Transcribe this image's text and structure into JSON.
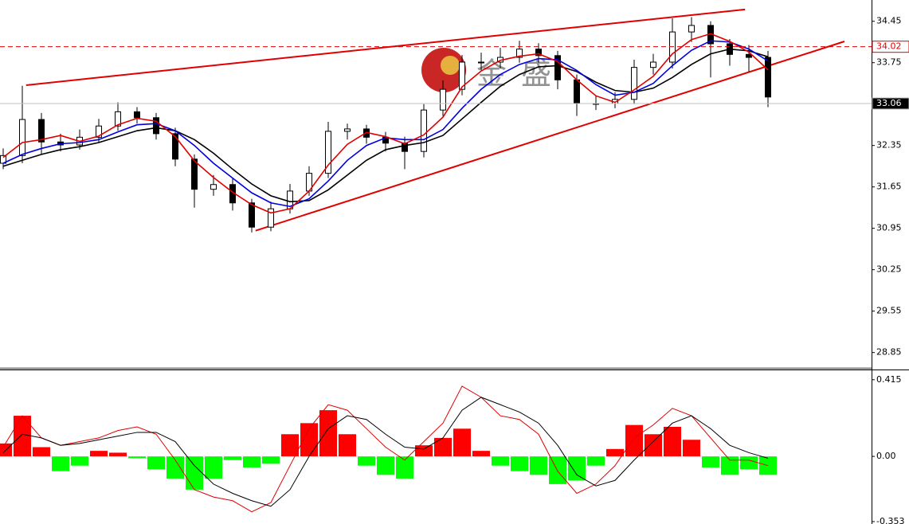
{
  "chart_data": [
    {
      "type": "candlestick",
      "watermark": "金盛",
      "open": [
        32.05,
        32.18,
        32.79,
        32.41,
        32.36,
        32.49,
        32.68,
        32.92,
        32.82,
        32.55,
        32.12,
        31.61,
        31.69,
        31.38,
        30.97,
        31.28,
        31.58,
        31.88,
        32.59,
        32.63,
        32.49,
        32.39,
        32.25,
        32.95,
        33.3,
        33.76,
        33.76,
        33.84,
        33.98,
        33.87,
        33.46,
        33.06,
        33.06,
        33.13,
        33.67,
        33.76,
        34.27,
        34.38,
        34.07,
        33.89,
        33.84
      ],
      "high": [
        32.3,
        33.36,
        32.9,
        32.55,
        32.62,
        32.8,
        33.08,
        33.0,
        32.9,
        32.65,
        32.2,
        31.85,
        31.8,
        31.45,
        31.4,
        31.7,
        32.0,
        32.75,
        32.72,
        32.7,
        32.58,
        32.5,
        33.05,
        33.45,
        33.88,
        33.92,
        34.0,
        34.12,
        34.08,
        33.95,
        33.55,
        33.2,
        33.25,
        33.8,
        33.9,
        34.5,
        34.52,
        34.45,
        34.15,
        34.05,
        33.95
      ],
      "low": [
        31.95,
        32.05,
        32.2,
        32.25,
        32.28,
        32.4,
        32.6,
        32.72,
        32.45,
        32.0,
        31.3,
        31.5,
        31.25,
        30.88,
        30.9,
        31.2,
        31.5,
        31.8,
        32.45,
        32.38,
        32.25,
        31.95,
        32.15,
        32.85,
        33.2,
        33.62,
        33.65,
        33.75,
        33.75,
        33.3,
        32.85,
        32.95,
        32.98,
        33.05,
        33.55,
        33.65,
        34.1,
        33.5,
        33.7,
        33.6,
        33.0
      ],
      "close": [
        32.18,
        32.79,
        32.41,
        32.36,
        32.49,
        32.68,
        32.92,
        32.82,
        32.55,
        32.12,
        31.61,
        31.69,
        31.38,
        30.97,
        31.28,
        31.58,
        31.88,
        32.59,
        32.63,
        32.49,
        32.39,
        32.25,
        32.95,
        33.3,
        33.76,
        33.76,
        33.84,
        33.98,
        33.87,
        33.46,
        33.06,
        33.06,
        33.13,
        33.67,
        33.76,
        34.27,
        34.38,
        34.07,
        33.89,
        33.84,
        33.17
      ],
      "up_color": "#ffffff",
      "down_color": "#000000",
      "ma_lines": [
        {
          "color": "#000000",
          "values": [
            32.0,
            32.1,
            32.2,
            32.28,
            32.33,
            32.4,
            32.5,
            32.6,
            32.65,
            32.6,
            32.45,
            32.22,
            31.95,
            31.7,
            31.5,
            31.4,
            31.42,
            31.6,
            31.85,
            32.1,
            32.28,
            32.35,
            32.4,
            32.52,
            32.8,
            33.08,
            33.35,
            33.55,
            33.68,
            33.7,
            33.6,
            33.42,
            33.28,
            33.25,
            33.32,
            33.5,
            33.72,
            33.9,
            33.98,
            33.95,
            33.85
          ]
        },
        {
          "color": "#0000e0",
          "values": [
            32.05,
            32.2,
            32.3,
            32.38,
            32.4,
            32.45,
            32.58,
            32.7,
            32.72,
            32.6,
            32.35,
            32.05,
            31.8,
            31.55,
            31.38,
            31.32,
            31.45,
            31.75,
            32.1,
            32.35,
            32.48,
            32.45,
            32.45,
            32.62,
            32.98,
            33.3,
            33.55,
            33.72,
            33.82,
            33.8,
            33.62,
            33.38,
            33.2,
            33.25,
            33.4,
            33.7,
            33.96,
            34.12,
            34.1,
            33.98,
            33.78
          ]
        },
        {
          "color": "#e00000",
          "values": [
            32.15,
            32.4,
            32.45,
            32.52,
            32.42,
            32.51,
            32.7,
            32.81,
            32.76,
            32.5,
            32.09,
            31.81,
            31.56,
            31.35,
            31.21,
            31.28,
            31.58,
            32.02,
            32.37,
            32.57,
            32.5,
            32.38,
            32.53,
            32.83,
            33.34,
            33.61,
            33.79,
            33.86,
            33.9,
            33.77,
            33.46,
            33.19,
            33.08,
            33.29,
            33.52,
            33.9,
            34.14,
            34.24,
            34.11,
            33.93,
            33.63
          ]
        }
      ],
      "trendlines": [
        {
          "color": "#e00000",
          "x": [
            1.2,
            38.8
          ],
          "y": [
            33.37,
            34.65
          ]
        },
        {
          "color": "#e00000",
          "x": [
            13.2,
            44
          ],
          "y": [
            30.91,
            34.11
          ]
        }
      ],
      "hlines": [
        {
          "value": 34.02,
          "color": "#e00000",
          "dashed": true,
          "label_bg": "#ffffff",
          "label_color": "#e00000"
        },
        {
          "value": 33.06,
          "color": "#c0c0c0",
          "dashed": false,
          "label_bg": "#000000",
          "label_color": "#ffffff"
        }
      ],
      "ylim": [
        28.59,
        34.81
      ],
      "yticks": [
        34.45,
        33.75,
        33.05,
        32.35,
        31.65,
        30.95,
        30.25,
        29.55,
        28.85
      ]
    },
    {
      "type": "macd",
      "values": [
        0.07,
        0.22,
        0.05,
        -0.08,
        -0.05,
        0.03,
        0.02,
        -0.01,
        -0.07,
        -0.12,
        -0.18,
        -0.12,
        -0.02,
        -0.06,
        -0.04,
        0.12,
        0.18,
        0.25,
        0.12,
        -0.05,
        -0.1,
        -0.12,
        0.06,
        0.1,
        0.15,
        0.03,
        -0.05,
        -0.08,
        -0.1,
        -0.15,
        -0.13,
        -0.05,
        0.04,
        0.17,
        0.12,
        0.16,
        0.09,
        -0.06,
        -0.1,
        -0.07,
        -0.1
      ],
      "up_color": "#ff0000",
      "down_color": "#00ff00",
      "lines": [
        {
          "color": "#e00000",
          "values": [
            0.05,
            0.22,
            0.1,
            0.06,
            0.08,
            0.1,
            0.14,
            0.16,
            0.12,
            -0.02,
            -0.18,
            -0.22,
            -0.24,
            -0.3,
            -0.25,
            -0.05,
            0.15,
            0.28,
            0.25,
            0.15,
            0.05,
            -0.02,
            0.08,
            0.18,
            0.38,
            0.32,
            0.22,
            0.2,
            0.12,
            -0.08,
            -0.2,
            -0.15,
            -0.05,
            0.1,
            0.17,
            0.26,
            0.22,
            0.1,
            -0.02,
            -0.02,
            -0.05
          ]
        },
        {
          "color": "#000000",
          "values": [
            0.02,
            0.12,
            0.1,
            0.06,
            0.07,
            0.09,
            0.11,
            0.13,
            0.13,
            0.08,
            -0.05,
            -0.15,
            -0.2,
            -0.24,
            -0.27,
            -0.18,
            0.0,
            0.15,
            0.22,
            0.2,
            0.12,
            0.05,
            0.04,
            0.1,
            0.25,
            0.32,
            0.28,
            0.24,
            0.18,
            0.06,
            -0.1,
            -0.16,
            -0.13,
            -0.02,
            0.08,
            0.18,
            0.22,
            0.15,
            0.06,
            0.02,
            -0.01
          ]
        }
      ],
      "ylim": [
        -0.366,
        0.466
      ],
      "yticks": [
        0.415,
        {
          "value": 0,
          "label": "0.00"
        },
        -0.353
      ]
    }
  ]
}
